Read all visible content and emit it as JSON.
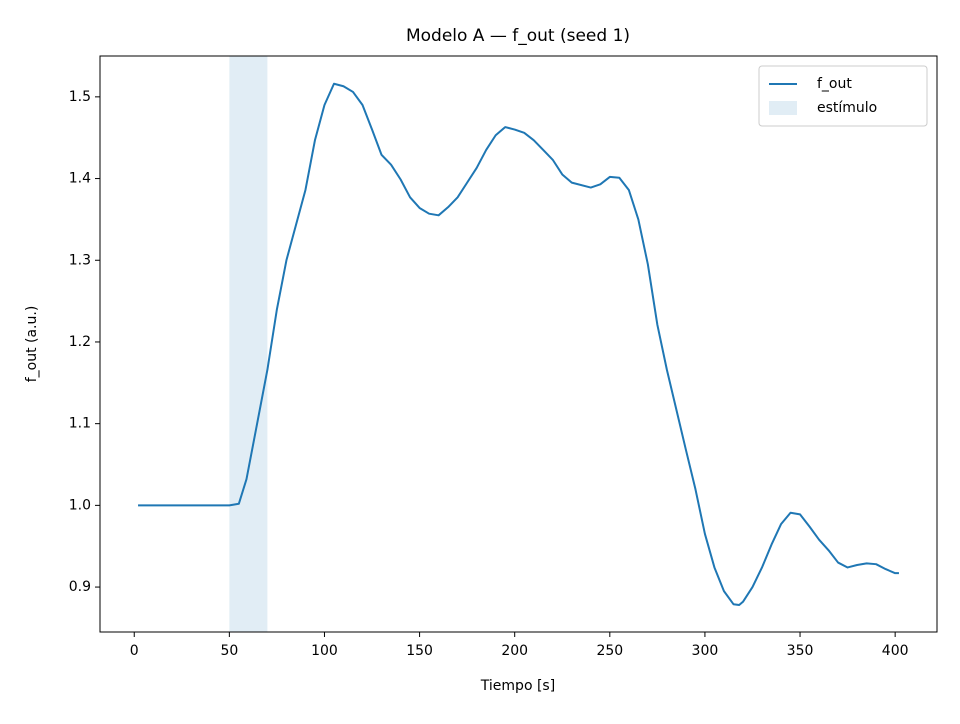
{
  "chart_data": {
    "type": "line",
    "title": "Modelo A — f_out (seed 1)",
    "xlabel": "Tiempo [s]",
    "ylabel": "f_out (a.u.)",
    "x": [
      2,
      50,
      55,
      59,
      65,
      70,
      75,
      80,
      85,
      90,
      95,
      100,
      105,
      110,
      115,
      120,
      125,
      130,
      135,
      140,
      145,
      150,
      155,
      160,
      165,
      170,
      175,
      180,
      185,
      190,
      195,
      200,
      205,
      210,
      215,
      220,
      225,
      230,
      240,
      245,
      250,
      255,
      260,
      265,
      270,
      275,
      280,
      285,
      290,
      295,
      300,
      305,
      310,
      315,
      318,
      320,
      325,
      330,
      335,
      340,
      345,
      350,
      355,
      360,
      365,
      370,
      375,
      380,
      385,
      390,
      395,
      400,
      402
    ],
    "series": [
      {
        "name": "f_out",
        "color": "#1f77b4",
        "values": [
          1.0,
          1.0,
          1.002,
          1.032,
          1.105,
          1.166,
          1.24,
          1.3,
          1.343,
          1.386,
          1.447,
          1.49,
          1.516,
          1.513,
          1.506,
          1.49,
          1.46,
          1.429,
          1.417,
          1.399,
          1.377,
          1.364,
          1.357,
          1.355,
          1.365,
          1.377,
          1.395,
          1.413,
          1.435,
          1.453,
          1.463,
          1.46,
          1.456,
          1.447,
          1.435,
          1.423,
          1.405,
          1.395,
          1.389,
          1.393,
          1.402,
          1.401,
          1.386,
          1.35,
          1.295,
          1.221,
          1.166,
          1.117,
          1.068,
          1.02,
          0.965,
          0.924,
          0.895,
          0.879,
          0.878,
          0.882,
          0.9,
          0.924,
          0.952,
          0.977,
          0.991,
          0.989,
          0.974,
          0.958,
          0.945,
          0.93,
          0.924,
          0.927,
          0.929,
          0.928,
          0.922,
          0.917,
          0.917
        ]
      }
    ],
    "spans": [
      {
        "name": "estímulo",
        "color": "#e1edf5",
        "x": [
          50,
          70
        ]
      }
    ],
    "xlim": [
      -18,
      422
    ],
    "xticks": [
      0,
      50,
      100,
      150,
      200,
      250,
      300,
      350,
      400
    ],
    "ylim": [
      0.845,
      1.55
    ],
    "yticks": [
      0.9,
      {
        "value": 1,
        "label": "1.0"
      },
      1.1,
      1.2,
      1.3,
      1.4,
      1.5
    ],
    "legend": "upper right"
  }
}
